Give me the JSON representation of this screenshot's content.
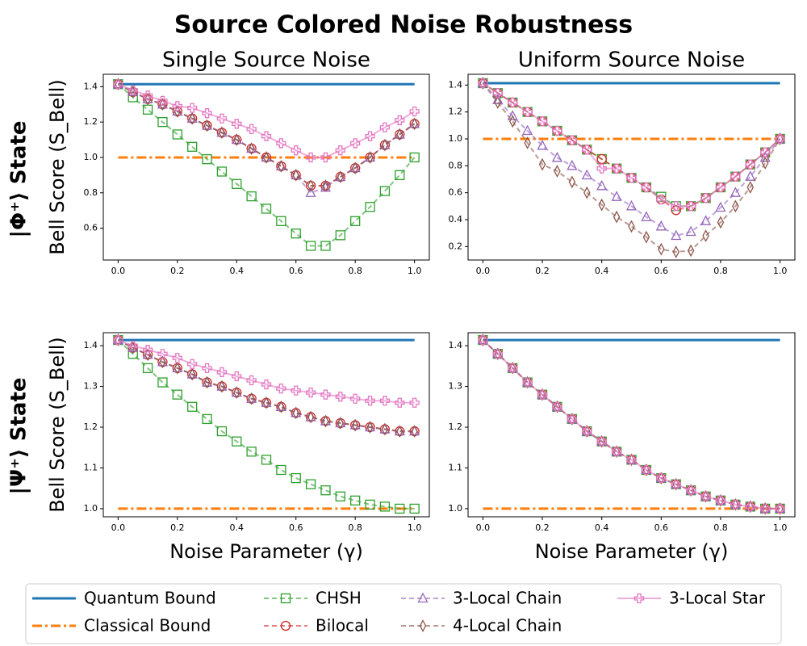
{
  "title": "Source Colored Noise Robustness",
  "row_labels": [
    "|Φ⁺⟩ State",
    "|Ψ⁺⟩ State"
  ],
  "chart_data": [
    {
      "type": "line",
      "title": "Single Source Noise",
      "ylabel": "Bell Score (S_Bell)",
      "x": [
        0,
        0.05,
        0.1,
        0.15,
        0.2,
        0.25,
        0.3,
        0.35,
        0.4,
        0.45,
        0.5,
        0.55,
        0.6,
        0.65,
        0.7,
        0.75,
        0.8,
        0.85,
        0.9,
        0.95,
        1
      ],
      "xlim": [
        -0.05,
        1.05
      ],
      "xticks": [
        {
          "value": 0,
          "label": "0.0"
        },
        0.2,
        0.4,
        0.6,
        0.8,
        {
          "value": 1,
          "label": "1.0"
        }
      ],
      "ylim": [
        0.42,
        1.47
      ],
      "yticks": [
        0.6,
        0.8,
        {
          "value": 1,
          "label": "1.0"
        },
        1.2,
        1.4
      ],
      "series": [
        {
          "name": "Quantum Bound",
          "color": "#1f77b4",
          "linestyle": "solid",
          "marker": "none",
          "values": [
            1.414,
            1.414,
            1.414,
            1.414,
            1.414,
            1.414,
            1.414,
            1.414,
            1.414,
            1.414,
            1.414,
            1.414,
            1.414,
            1.414,
            1.414,
            1.414,
            1.414,
            1.414,
            1.414,
            1.414,
            1.414
          ]
        },
        {
          "name": "Classical Bound",
          "color": "#ff7f0e",
          "linestyle": "dashdot",
          "marker": "none",
          "values": [
            1,
            1,
            1,
            1,
            1,
            1,
            1,
            1,
            1,
            1,
            1,
            1,
            1,
            1,
            1,
            1,
            1,
            1,
            1,
            1,
            1
          ]
        },
        {
          "name": "CHSH",
          "color": "#2ca02c",
          "linestyle": "dashed",
          "marker": "square",
          "values": [
            1.414,
            1.34,
            1.27,
            1.2,
            1.13,
            1.06,
            0.99,
            0.92,
            0.85,
            0.78,
            0.71,
            0.64,
            0.57,
            0.5,
            0.5,
            0.56,
            0.64,
            0.72,
            0.81,
            0.9,
            1.0
          ]
        },
        {
          "name": "Bilocal",
          "color": "#d62728",
          "linestyle": "dashed",
          "marker": "circle",
          "values": [
            1.414,
            1.37,
            1.33,
            1.3,
            1.26,
            1.22,
            1.18,
            1.14,
            1.1,
            1.05,
            1.0,
            0.95,
            0.9,
            0.84,
            0.84,
            0.89,
            0.94,
            1.0,
            1.07,
            1.13,
            1.19
          ]
        },
        {
          "name": "3-Local Chain",
          "color": "#9467bd",
          "linestyle": "dashed",
          "marker": "triangle",
          "values": [
            1.414,
            1.37,
            1.33,
            1.3,
            1.26,
            1.22,
            1.18,
            1.14,
            1.1,
            1.05,
            1.0,
            0.95,
            0.9,
            0.8,
            0.83,
            0.89,
            0.94,
            1.0,
            1.07,
            1.13,
            1.19
          ]
        },
        {
          "name": "4-Local Chain",
          "color": "#8c564b",
          "linestyle": "dashed",
          "marker": "diamond",
          "values": [
            1.414,
            1.37,
            1.33,
            1.3,
            1.26,
            1.22,
            1.18,
            1.14,
            1.1,
            1.05,
            1.0,
            0.95,
            0.9,
            0.84,
            0.84,
            0.89,
            0.94,
            1.0,
            1.07,
            1.13,
            1.19
          ]
        },
        {
          "name": "3-Local Star",
          "color": "#e377c2",
          "linestyle": "solid",
          "marker": "plus",
          "values": [
            1.414,
            1.38,
            1.35,
            1.32,
            1.29,
            1.28,
            1.25,
            1.22,
            1.19,
            1.16,
            1.12,
            1.08,
            1.04,
            1.0,
            1.0,
            1.04,
            1.08,
            1.12,
            1.17,
            1.21,
            1.26
          ]
        }
      ]
    },
    {
      "type": "line",
      "title": "Uniform Source Noise",
      "x": [
        0,
        0.05,
        0.1,
        0.15,
        0.2,
        0.25,
        0.3,
        0.35,
        0.4,
        0.45,
        0.5,
        0.55,
        0.6,
        0.65,
        0.7,
        0.75,
        0.8,
        0.85,
        0.9,
        0.95,
        1
      ],
      "xlim": [
        -0.05,
        1.05
      ],
      "xticks": [
        {
          "value": 0,
          "label": "0.0"
        },
        0.2,
        0.4,
        0.6,
        0.8,
        {
          "value": 1,
          "label": "1.0"
        }
      ],
      "ylim": [
        0.1,
        1.48
      ],
      "yticks": [
        0.2,
        0.4,
        0.6,
        0.8,
        {
          "value": 1,
          "label": "1.0"
        },
        1.2,
        1.4
      ],
      "series": [
        {
          "name": "Quantum Bound",
          "color": "#1f77b4",
          "linestyle": "solid",
          "marker": "none",
          "values": [
            1.414,
            1.414,
            1.414,
            1.414,
            1.414,
            1.414,
            1.414,
            1.414,
            1.414,
            1.414,
            1.414,
            1.414,
            1.414,
            1.414,
            1.414,
            1.414,
            1.414,
            1.414,
            1.414,
            1.414,
            1.414
          ]
        },
        {
          "name": "Classical Bound",
          "color": "#ff7f0e",
          "linestyle": "dashdot",
          "marker": "none",
          "values": [
            1,
            1,
            1,
            1,
            1,
            1,
            1,
            1,
            1,
            1,
            1,
            1,
            1,
            1,
            1,
            1,
            1,
            1,
            1,
            1,
            1
          ]
        },
        {
          "name": "CHSH",
          "color": "#2ca02c",
          "linestyle": "dashed",
          "marker": "square",
          "values": [
            1.414,
            1.34,
            1.27,
            1.2,
            1.13,
            1.06,
            0.99,
            0.92,
            0.85,
            0.78,
            0.71,
            0.64,
            0.57,
            0.5,
            0.5,
            0.56,
            0.64,
            0.72,
            0.81,
            0.9,
            1.0
          ]
        },
        {
          "name": "Bilocal",
          "color": "#d62728",
          "linestyle": "dashed",
          "marker": "circle",
          "values": [
            1.414,
            1.34,
            1.27,
            1.2,
            1.13,
            1.06,
            0.99,
            0.92,
            0.85,
            0.78,
            0.71,
            0.64,
            0.55,
            0.47,
            0.5,
            0.56,
            0.64,
            0.72,
            0.81,
            0.9,
            1.0
          ]
        },
        {
          "name": "3-Local Chain",
          "color": "#9467bd",
          "linestyle": "dashed",
          "marker": "triangle",
          "values": [
            1.414,
            1.29,
            1.17,
            1.06,
            0.95,
            0.86,
            0.8,
            0.73,
            0.65,
            0.57,
            0.5,
            0.42,
            0.35,
            0.28,
            0.31,
            0.39,
            0.49,
            0.6,
            0.72,
            0.86,
            1.0
          ]
        },
        {
          "name": "4-Local Chain",
          "color": "#8c564b",
          "linestyle": "dashed",
          "marker": "diamond",
          "values": [
            1.414,
            1.27,
            1.13,
            0.97,
            0.81,
            0.76,
            0.68,
            0.6,
            0.51,
            0.42,
            0.35,
            0.27,
            0.18,
            0.16,
            0.17,
            0.28,
            0.38,
            0.5,
            0.64,
            0.82,
            1.0
          ]
        },
        {
          "name": "3-Local Star",
          "color": "#e377c2",
          "linestyle": "solid",
          "marker": "plus",
          "values": [
            1.414,
            1.34,
            1.27,
            1.2,
            1.13,
            1.06,
            0.99,
            0.92,
            0.78,
            0.78,
            0.71,
            0.64,
            0.55,
            0.5,
            0.5,
            0.56,
            0.64,
            0.72,
            0.81,
            0.9,
            1.0
          ]
        }
      ]
    },
    {
      "type": "line",
      "xlabel": "Noise Parameter (γ)",
      "ylabel": "Bell Score (S_Bell)",
      "x": [
        0,
        0.05,
        0.1,
        0.15,
        0.2,
        0.25,
        0.3,
        0.35,
        0.4,
        0.45,
        0.5,
        0.55,
        0.6,
        0.65,
        0.7,
        0.75,
        0.8,
        0.85,
        0.9,
        0.95,
        1
      ],
      "xlim": [
        -0.05,
        1.05
      ],
      "xticks": [
        {
          "value": 0,
          "label": "0.0"
        },
        0.2,
        0.4,
        0.6,
        0.8,
        {
          "value": 1,
          "label": "1.0"
        }
      ],
      "ylim": [
        0.98,
        1.432
      ],
      "yticks": [
        {
          "value": 1,
          "label": "1.0"
        },
        1.1,
        1.2,
        1.3,
        1.4
      ],
      "series": [
        {
          "name": "Quantum Bound",
          "color": "#1f77b4",
          "linestyle": "solid",
          "marker": "none",
          "values": [
            1.414,
            1.414,
            1.414,
            1.414,
            1.414,
            1.414,
            1.414,
            1.414,
            1.414,
            1.414,
            1.414,
            1.414,
            1.414,
            1.414,
            1.414,
            1.414,
            1.414,
            1.414,
            1.414,
            1.414,
            1.414
          ]
        },
        {
          "name": "Classical Bound",
          "color": "#ff7f0e",
          "linestyle": "dashdot",
          "marker": "none",
          "values": [
            1,
            1,
            1,
            1,
            1,
            1,
            1,
            1,
            1,
            1,
            1,
            1,
            1,
            1,
            1,
            1,
            1,
            1,
            1,
            1,
            1
          ]
        },
        {
          "name": "CHSH",
          "color": "#2ca02c",
          "linestyle": "dashed",
          "marker": "square",
          "values": [
            1.414,
            1.38,
            1.345,
            1.31,
            1.28,
            1.25,
            1.22,
            1.19,
            1.165,
            1.14,
            1.12,
            1.095,
            1.075,
            1.06,
            1.045,
            1.03,
            1.02,
            1.01,
            1.005,
            1.0,
            1.0
          ]
        },
        {
          "name": "Bilocal",
          "color": "#d62728",
          "linestyle": "dashed",
          "marker": "circle",
          "values": [
            1.414,
            1.395,
            1.378,
            1.36,
            1.345,
            1.33,
            1.31,
            1.3,
            1.285,
            1.27,
            1.26,
            1.25,
            1.235,
            1.225,
            1.215,
            1.21,
            1.205,
            1.2,
            1.195,
            1.19,
            1.19
          ]
        },
        {
          "name": "3-Local Chain",
          "color": "#9467bd",
          "linestyle": "dashed",
          "marker": "triangle",
          "values": [
            1.414,
            1.395,
            1.378,
            1.36,
            1.345,
            1.33,
            1.31,
            1.3,
            1.285,
            1.27,
            1.26,
            1.25,
            1.235,
            1.225,
            1.215,
            1.21,
            1.205,
            1.2,
            1.195,
            1.19,
            1.19
          ]
        },
        {
          "name": "4-Local Chain",
          "color": "#8c564b",
          "linestyle": "dashed",
          "marker": "diamond",
          "values": [
            1.414,
            1.395,
            1.378,
            1.36,
            1.345,
            1.33,
            1.31,
            1.3,
            1.285,
            1.27,
            1.26,
            1.25,
            1.235,
            1.225,
            1.215,
            1.21,
            1.205,
            1.2,
            1.195,
            1.19,
            1.19
          ]
        },
        {
          "name": "3-Local Star",
          "color": "#e377c2",
          "linestyle": "solid",
          "marker": "plus",
          "values": [
            1.414,
            1.4,
            1.39,
            1.38,
            1.37,
            1.355,
            1.345,
            1.335,
            1.325,
            1.315,
            1.305,
            1.295,
            1.29,
            1.285,
            1.28,
            1.275,
            1.27,
            1.265,
            1.265,
            1.26,
            1.26
          ]
        }
      ]
    },
    {
      "type": "line",
      "xlabel": "Noise Parameter (γ)",
      "x": [
        0,
        0.05,
        0.1,
        0.15,
        0.2,
        0.25,
        0.3,
        0.35,
        0.4,
        0.45,
        0.5,
        0.55,
        0.6,
        0.65,
        0.7,
        0.75,
        0.8,
        0.85,
        0.9,
        0.95,
        1
      ],
      "xlim": [
        -0.05,
        1.05
      ],
      "xticks": [
        {
          "value": 0,
          "label": "0.0"
        },
        0.2,
        0.4,
        0.6,
        0.8,
        {
          "value": 1,
          "label": "1.0"
        }
      ],
      "ylim": [
        0.98,
        1.432
      ],
      "yticks": [
        {
          "value": 1,
          "label": "1.0"
        },
        1.1,
        1.2,
        1.3,
        1.4
      ],
      "series": [
        {
          "name": "Quantum Bound",
          "color": "#1f77b4",
          "linestyle": "solid",
          "marker": "none",
          "values": [
            1.414,
            1.414,
            1.414,
            1.414,
            1.414,
            1.414,
            1.414,
            1.414,
            1.414,
            1.414,
            1.414,
            1.414,
            1.414,
            1.414,
            1.414,
            1.414,
            1.414,
            1.414,
            1.414,
            1.414,
            1.414
          ]
        },
        {
          "name": "Classical Bound",
          "color": "#ff7f0e",
          "linestyle": "dashdot",
          "marker": "none",
          "values": [
            1,
            1,
            1,
            1,
            1,
            1,
            1,
            1,
            1,
            1,
            1,
            1,
            1,
            1,
            1,
            1,
            1,
            1,
            1,
            1,
            1
          ]
        },
        {
          "name": "CHSH",
          "color": "#2ca02c",
          "linestyle": "dashed",
          "marker": "square",
          "values": [
            1.414,
            1.38,
            1.345,
            1.31,
            1.28,
            1.25,
            1.22,
            1.19,
            1.165,
            1.14,
            1.12,
            1.095,
            1.075,
            1.06,
            1.045,
            1.03,
            1.02,
            1.01,
            1.005,
            1.0,
            1.0
          ]
        },
        {
          "name": "Bilocal",
          "color": "#d62728",
          "linestyle": "dashed",
          "marker": "circle",
          "values": [
            1.414,
            1.38,
            1.345,
            1.31,
            1.28,
            1.25,
            1.22,
            1.19,
            1.165,
            1.14,
            1.12,
            1.095,
            1.075,
            1.06,
            1.045,
            1.03,
            1.02,
            1.01,
            1.005,
            1.0,
            1.0
          ]
        },
        {
          "name": "3-Local Chain",
          "color": "#9467bd",
          "linestyle": "dashed",
          "marker": "triangle",
          "values": [
            1.414,
            1.38,
            1.345,
            1.31,
            1.28,
            1.25,
            1.22,
            1.19,
            1.165,
            1.14,
            1.12,
            1.095,
            1.075,
            1.06,
            1.045,
            1.03,
            1.02,
            1.01,
            1.005,
            1.0,
            1.0
          ]
        },
        {
          "name": "4-Local Chain",
          "color": "#8c564b",
          "linestyle": "dashed",
          "marker": "diamond",
          "values": [
            1.414,
            1.38,
            1.345,
            1.31,
            1.28,
            1.25,
            1.22,
            1.19,
            1.165,
            1.14,
            1.12,
            1.095,
            1.075,
            1.06,
            1.045,
            1.03,
            1.02,
            1.01,
            1.005,
            1.0,
            1.0
          ]
        },
        {
          "name": "3-Local Star",
          "color": "#e377c2",
          "linestyle": "solid",
          "marker": "plus",
          "values": [
            1.414,
            1.38,
            1.345,
            1.31,
            1.28,
            1.25,
            1.22,
            1.19,
            1.165,
            1.14,
            1.12,
            1.095,
            1.075,
            1.06,
            1.045,
            1.03,
            1.02,
            1.01,
            1.005,
            1.0,
            1.0
          ]
        }
      ]
    }
  ]
}
